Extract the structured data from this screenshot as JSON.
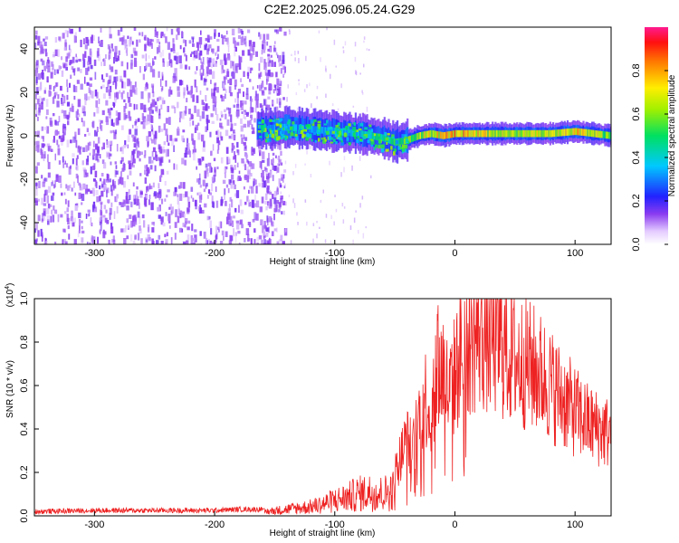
{
  "figure": {
    "title": "C2E2.2025.096.05.24.G29"
  },
  "chart_data": [
    {
      "type": "heatmap",
      "title": "C2E2.2025.096.05.24.G29",
      "xlabel": "Height of straight line (km)",
      "ylabel": "Frequency (Hz)",
      "xlim": [
        -350,
        130
      ],
      "ylim": [
        -50,
        50
      ],
      "x_ticks": [
        -300,
        -200,
        -100,
        0,
        100
      ],
      "y_ticks": [
        -40,
        -20,
        0,
        20,
        40
      ],
      "colorbar": {
        "label": "Normalized spectral amplitude",
        "range": [
          0,
          1
        ],
        "ticks": [
          0.0,
          0.2,
          0.4,
          0.6,
          0.8
        ],
        "tick_labels": [
          "0.0",
          "0.2",
          "0.4",
          "0.6",
          "0.8"
        ],
        "colormap": "rainbow (white-violet-blue-cyan-green-yellow-orange-red-magenta)"
      },
      "ridge": {
        "description": "dominant frequency ridge near 0 Hz",
        "x": [
          -165,
          -140,
          -120,
          -100,
          -80,
          -60,
          -50,
          -40,
          -30,
          -20,
          -10,
          0,
          20,
          50,
          80,
          100,
          130
        ],
        "freq_hz": [
          3,
          4,
          3,
          2,
          1,
          -1,
          -3,
          -2,
          0,
          1,
          0,
          1,
          1,
          1,
          1,
          2,
          0
        ],
        "amplitude": [
          0.3,
          0.35,
          0.35,
          0.4,
          0.4,
          0.5,
          0.55,
          0.6,
          0.7,
          0.75,
          0.8,
          0.85,
          0.75,
          0.7,
          0.75,
          0.8,
          0.6
        ]
      },
      "noise_region_x": [
        -350,
        -150
      ],
      "grid": false
    },
    {
      "type": "line",
      "xlabel": "Height of straight line (km)",
      "ylabel": "SNR (10 * v/v)",
      "y_scale_label": "(x10^4)",
      "xlim": [
        -350,
        130
      ],
      "ylim": [
        0,
        1.0
      ],
      "x_ticks": [
        -300,
        -200,
        -100,
        0,
        100
      ],
      "y_ticks": [
        0.0,
        0.2,
        0.4,
        0.6,
        0.8,
        1.0
      ],
      "y_tick_labels": [
        "0.0",
        "0.2",
        "0.4",
        "0.6",
        "0.8",
        "1.0"
      ],
      "series": [
        {
          "color": "#ee2222",
          "x": [
            -350,
            -300,
            -250,
            -200,
            -180,
            -160,
            -140,
            -120,
            -110,
            -100,
            -90,
            -80,
            -70,
            -60,
            -50,
            -45,
            -40,
            -35,
            -30,
            -25,
            -20,
            -15,
            -10,
            -5,
            0,
            5,
            10,
            20,
            30,
            40,
            50,
            60,
            70,
            80,
            90,
            100,
            110,
            120,
            130
          ],
          "y": [
            0.02,
            0.025,
            0.025,
            0.025,
            0.03,
            0.03,
            0.05,
            0.07,
            0.09,
            0.12,
            0.14,
            0.17,
            0.18,
            0.17,
            0.2,
            0.28,
            0.35,
            0.3,
            0.45,
            0.55,
            0.5,
            0.7,
            0.68,
            0.55,
            0.65,
            0.75,
            0.8,
            0.85,
            0.82,
            0.78,
            0.72,
            0.7,
            0.66,
            0.6,
            0.54,
            0.48,
            0.43,
            0.4,
            0.38
          ]
        }
      ],
      "grid": false
    }
  ]
}
